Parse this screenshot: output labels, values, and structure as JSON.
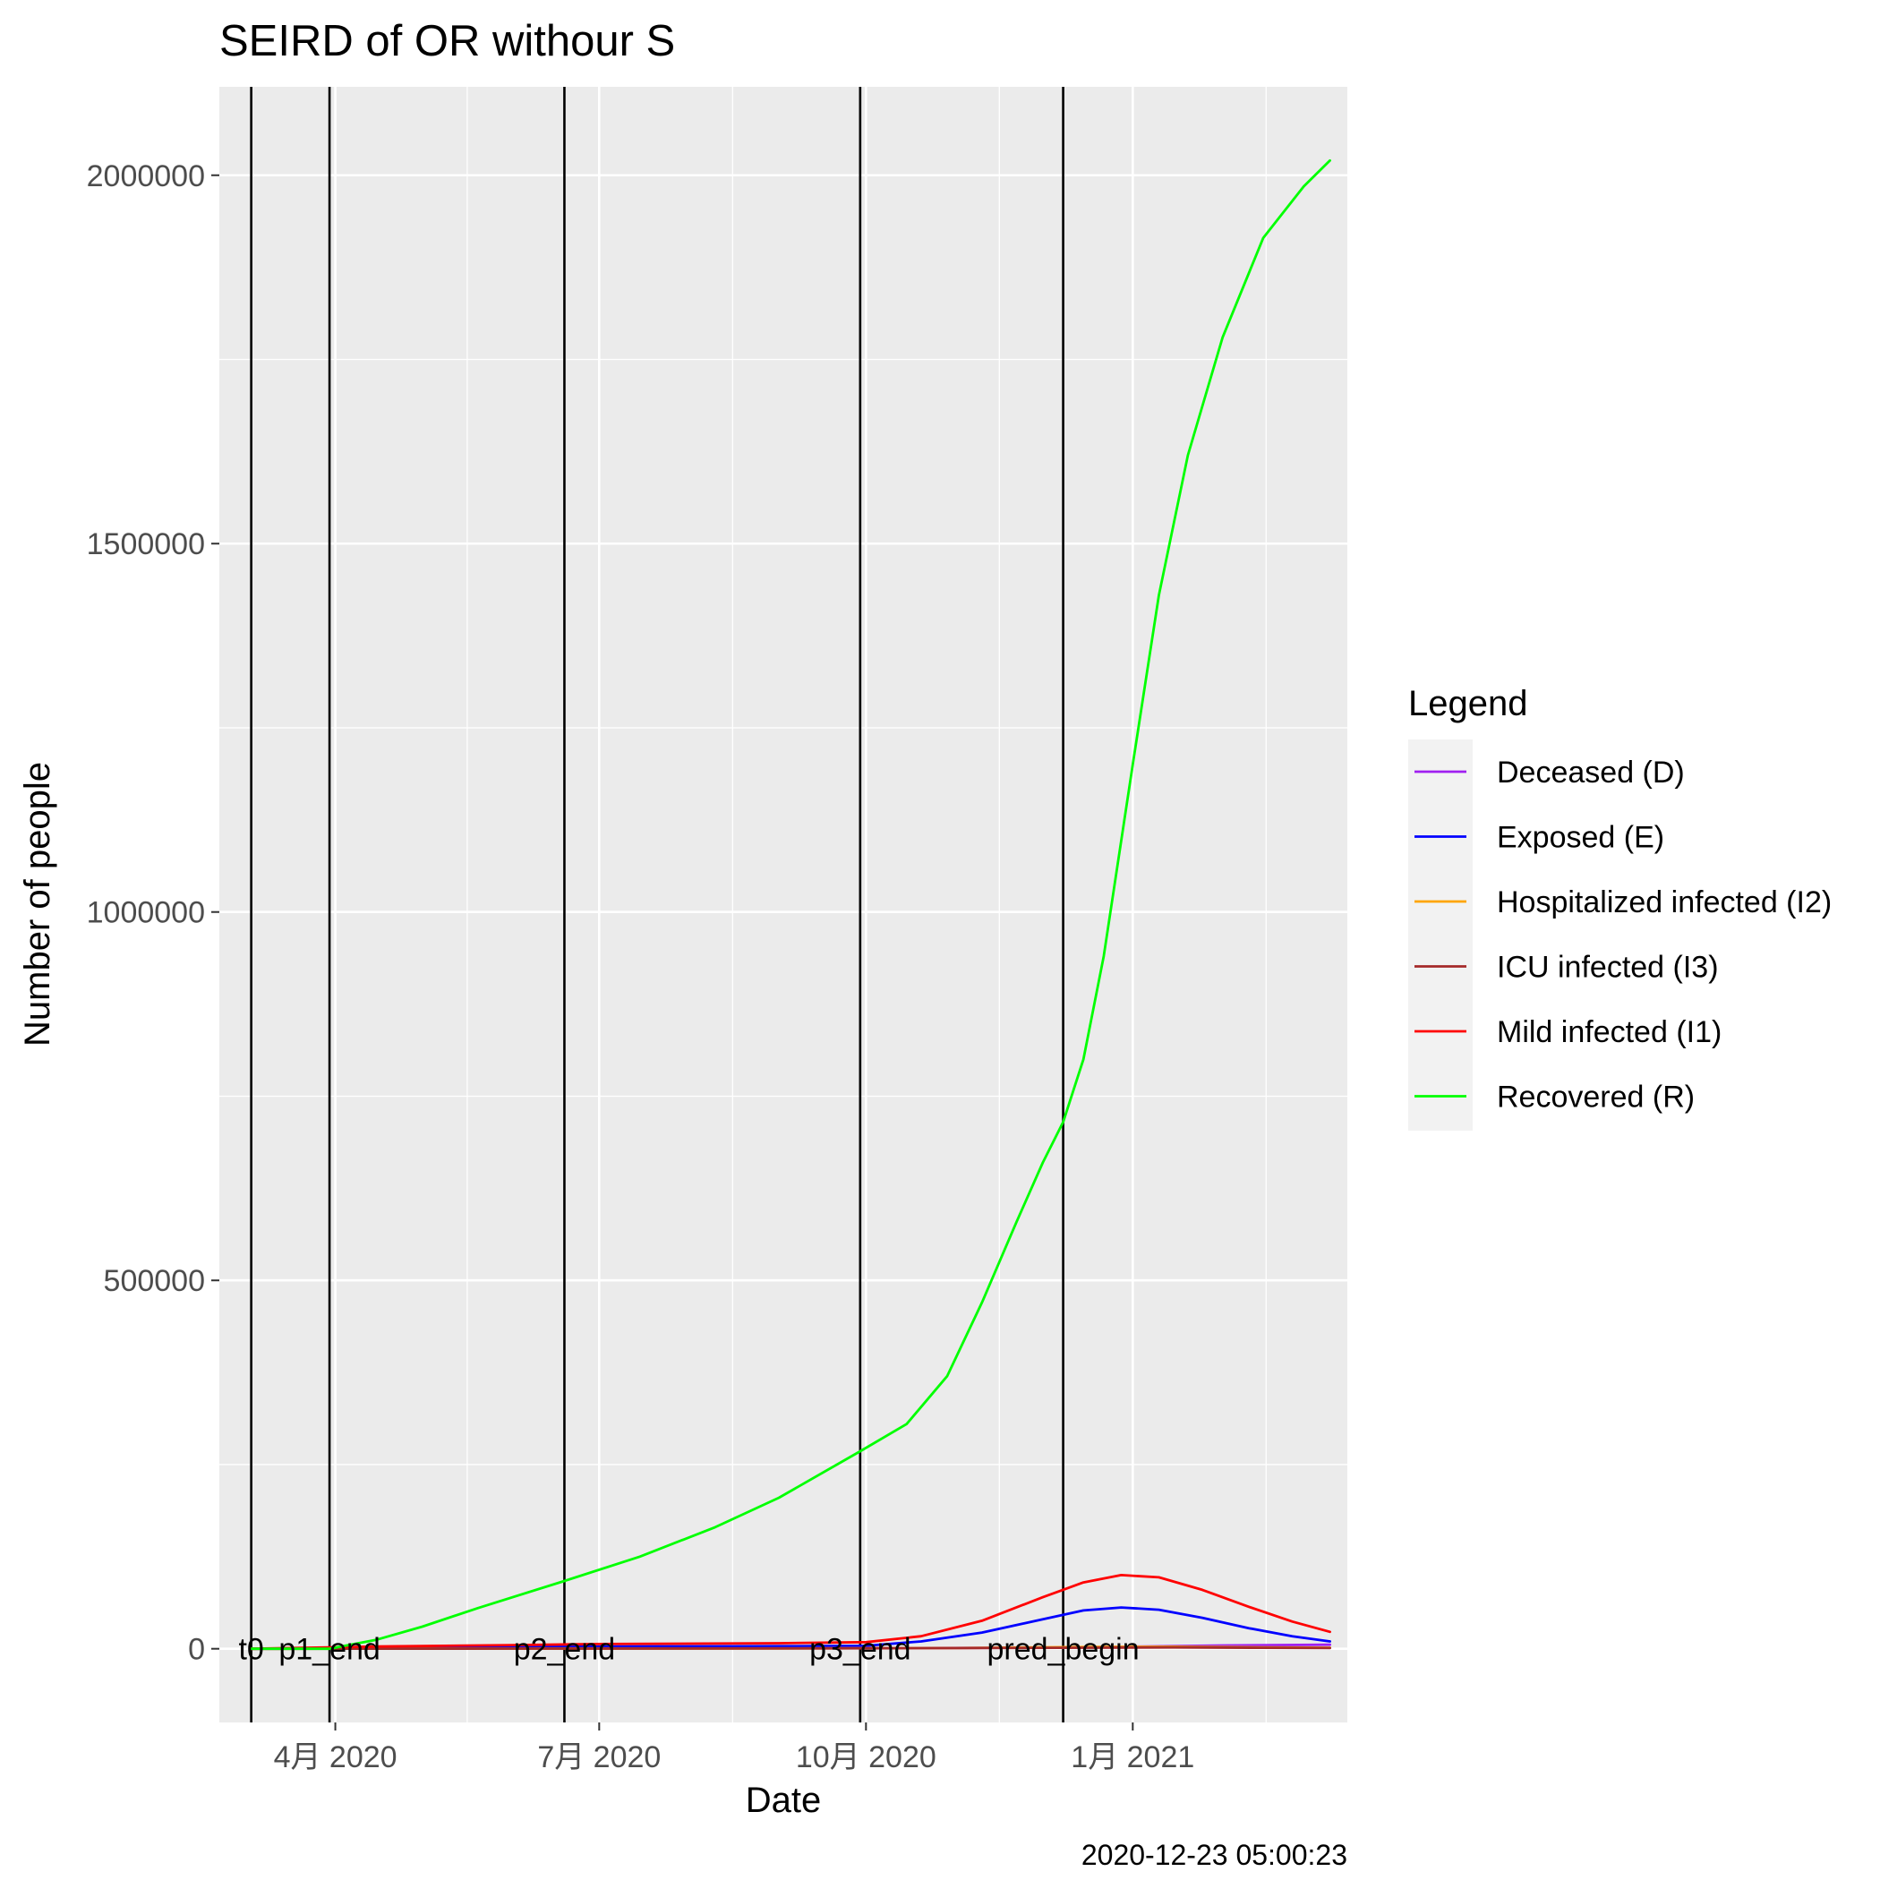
{
  "chart_data": {
    "type": "line",
    "title": "SEIRD of OR withour S",
    "xlabel": "Date",
    "ylabel": "Number of people",
    "caption": "2020-12-23 05:00:23",
    "x_range": [
      "2020-02-21",
      "2021-03-16"
    ],
    "ylim": [
      -100000,
      2120000
    ],
    "x_ticks": [
      {
        "date": "2020-04-01",
        "label": "4月 2020"
      },
      {
        "date": "2020-07-01",
        "label": "7月 2020"
      },
      {
        "date": "2020-10-01",
        "label": "10月 2020"
      },
      {
        "date": "2021-01-01",
        "label": "1月 2021"
      }
    ],
    "y_ticks": [
      {
        "value": 0,
        "label": "0"
      },
      {
        "value": 500000,
        "label": "500000"
      },
      {
        "value": 1000000,
        "label": "1000000"
      },
      {
        "value": 1500000,
        "label": "1500000"
      },
      {
        "value": 2000000,
        "label": "2000000"
      }
    ],
    "grid": true,
    "vertical_lines": [
      {
        "date": "2020-03-03",
        "label": "t0"
      },
      {
        "date": "2020-03-30",
        "label": "p1_end"
      },
      {
        "date": "2020-06-19",
        "label": "p2_end"
      },
      {
        "date": "2020-09-29",
        "label": "p3_end"
      },
      {
        "date": "2020-12-08",
        "label": "pred_begin"
      }
    ],
    "legend": {
      "title": "Legend",
      "position": "right"
    },
    "series": [
      {
        "name": "Deceased (D)",
        "color": "#A020F0",
        "points": [
          [
            "2020-03-03",
            0
          ],
          [
            "2020-06-01",
            300
          ],
          [
            "2020-09-01",
            700
          ],
          [
            "2020-11-01",
            1100
          ],
          [
            "2020-12-08",
            1700
          ],
          [
            "2021-01-01",
            2800
          ],
          [
            "2021-02-01",
            4500
          ],
          [
            "2021-03-10",
            5500
          ]
        ]
      },
      {
        "name": "Exposed (E)",
        "color": "#0000FF",
        "points": [
          [
            "2020-03-03",
            0
          ],
          [
            "2020-05-01",
            2000
          ],
          [
            "2020-07-01",
            3000
          ],
          [
            "2020-09-01",
            3500
          ],
          [
            "2020-10-01",
            4000
          ],
          [
            "2020-10-20",
            10000
          ],
          [
            "2020-11-10",
            22000
          ],
          [
            "2020-12-01",
            40000
          ],
          [
            "2020-12-15",
            52000
          ],
          [
            "2020-12-28",
            56000
          ],
          [
            "2021-01-10",
            53000
          ],
          [
            "2021-01-25",
            42000
          ],
          [
            "2021-02-10",
            28000
          ],
          [
            "2021-02-25",
            17000
          ],
          [
            "2021-03-10",
            10000
          ]
        ]
      },
      {
        "name": "Hospitalized infected (I2)",
        "color": "#FFA500",
        "points": [
          [
            "2020-03-03",
            0
          ],
          [
            "2020-06-01",
            300
          ],
          [
            "2020-09-01",
            500
          ],
          [
            "2020-11-01",
            1000
          ],
          [
            "2020-12-20",
            2500
          ],
          [
            "2021-01-15",
            2800
          ],
          [
            "2021-02-15",
            2000
          ],
          [
            "2021-03-10",
            1500
          ]
        ]
      },
      {
        "name": "ICU infected (I3)",
        "color": "#A52A2A",
        "points": [
          [
            "2020-03-03",
            0
          ],
          [
            "2020-06-01",
            200
          ],
          [
            "2020-09-01",
            400
          ],
          [
            "2020-11-01",
            800
          ],
          [
            "2020-12-20",
            1500
          ],
          [
            "2021-01-15",
            1800
          ],
          [
            "2021-02-15",
            1300
          ],
          [
            "2021-03-10",
            1000
          ]
        ]
      },
      {
        "name": "Mild infected (I1)",
        "color": "#FF0000",
        "points": [
          [
            "2020-03-03",
            0
          ],
          [
            "2020-04-15",
            3000
          ],
          [
            "2020-06-01",
            5000
          ],
          [
            "2020-07-01",
            6500
          ],
          [
            "2020-09-01",
            7500
          ],
          [
            "2020-10-01",
            9000
          ],
          [
            "2020-10-20",
            17000
          ],
          [
            "2020-11-10",
            38000
          ],
          [
            "2020-12-01",
            70000
          ],
          [
            "2020-12-15",
            90000
          ],
          [
            "2020-12-28",
            100000
          ],
          [
            "2021-01-10",
            97000
          ],
          [
            "2021-01-25",
            80000
          ],
          [
            "2021-02-10",
            57000
          ],
          [
            "2021-02-25",
            37000
          ],
          [
            "2021-03-10",
            23000
          ]
        ]
      },
      {
        "name": "Recovered (R)",
        "color": "#00FF00",
        "points": [
          [
            "2020-03-03",
            0
          ],
          [
            "2020-03-30",
            0
          ],
          [
            "2020-04-15",
            12000
          ],
          [
            "2020-05-01",
            30000
          ],
          [
            "2020-05-20",
            55000
          ],
          [
            "2020-06-19",
            92000
          ],
          [
            "2020-07-15",
            125000
          ],
          [
            "2020-08-10",
            165000
          ],
          [
            "2020-09-01",
            205000
          ],
          [
            "2020-09-29",
            268000
          ],
          [
            "2020-10-15",
            305000
          ],
          [
            "2020-10-29",
            370000
          ],
          [
            "2020-11-10",
            470000
          ],
          [
            "2020-11-22",
            580000
          ],
          [
            "2020-12-01",
            660000
          ],
          [
            "2020-12-08",
            715000
          ],
          [
            "2020-12-15",
            800000
          ],
          [
            "2020-12-22",
            940000
          ],
          [
            "2021-01-01",
            1200000
          ],
          [
            "2021-01-10",
            1430000
          ],
          [
            "2021-01-20",
            1620000
          ],
          [
            "2021-02-01",
            1780000
          ],
          [
            "2021-02-15",
            1915000
          ],
          [
            "2021-03-01",
            1985000
          ],
          [
            "2021-03-10",
            2020000
          ]
        ]
      }
    ]
  }
}
